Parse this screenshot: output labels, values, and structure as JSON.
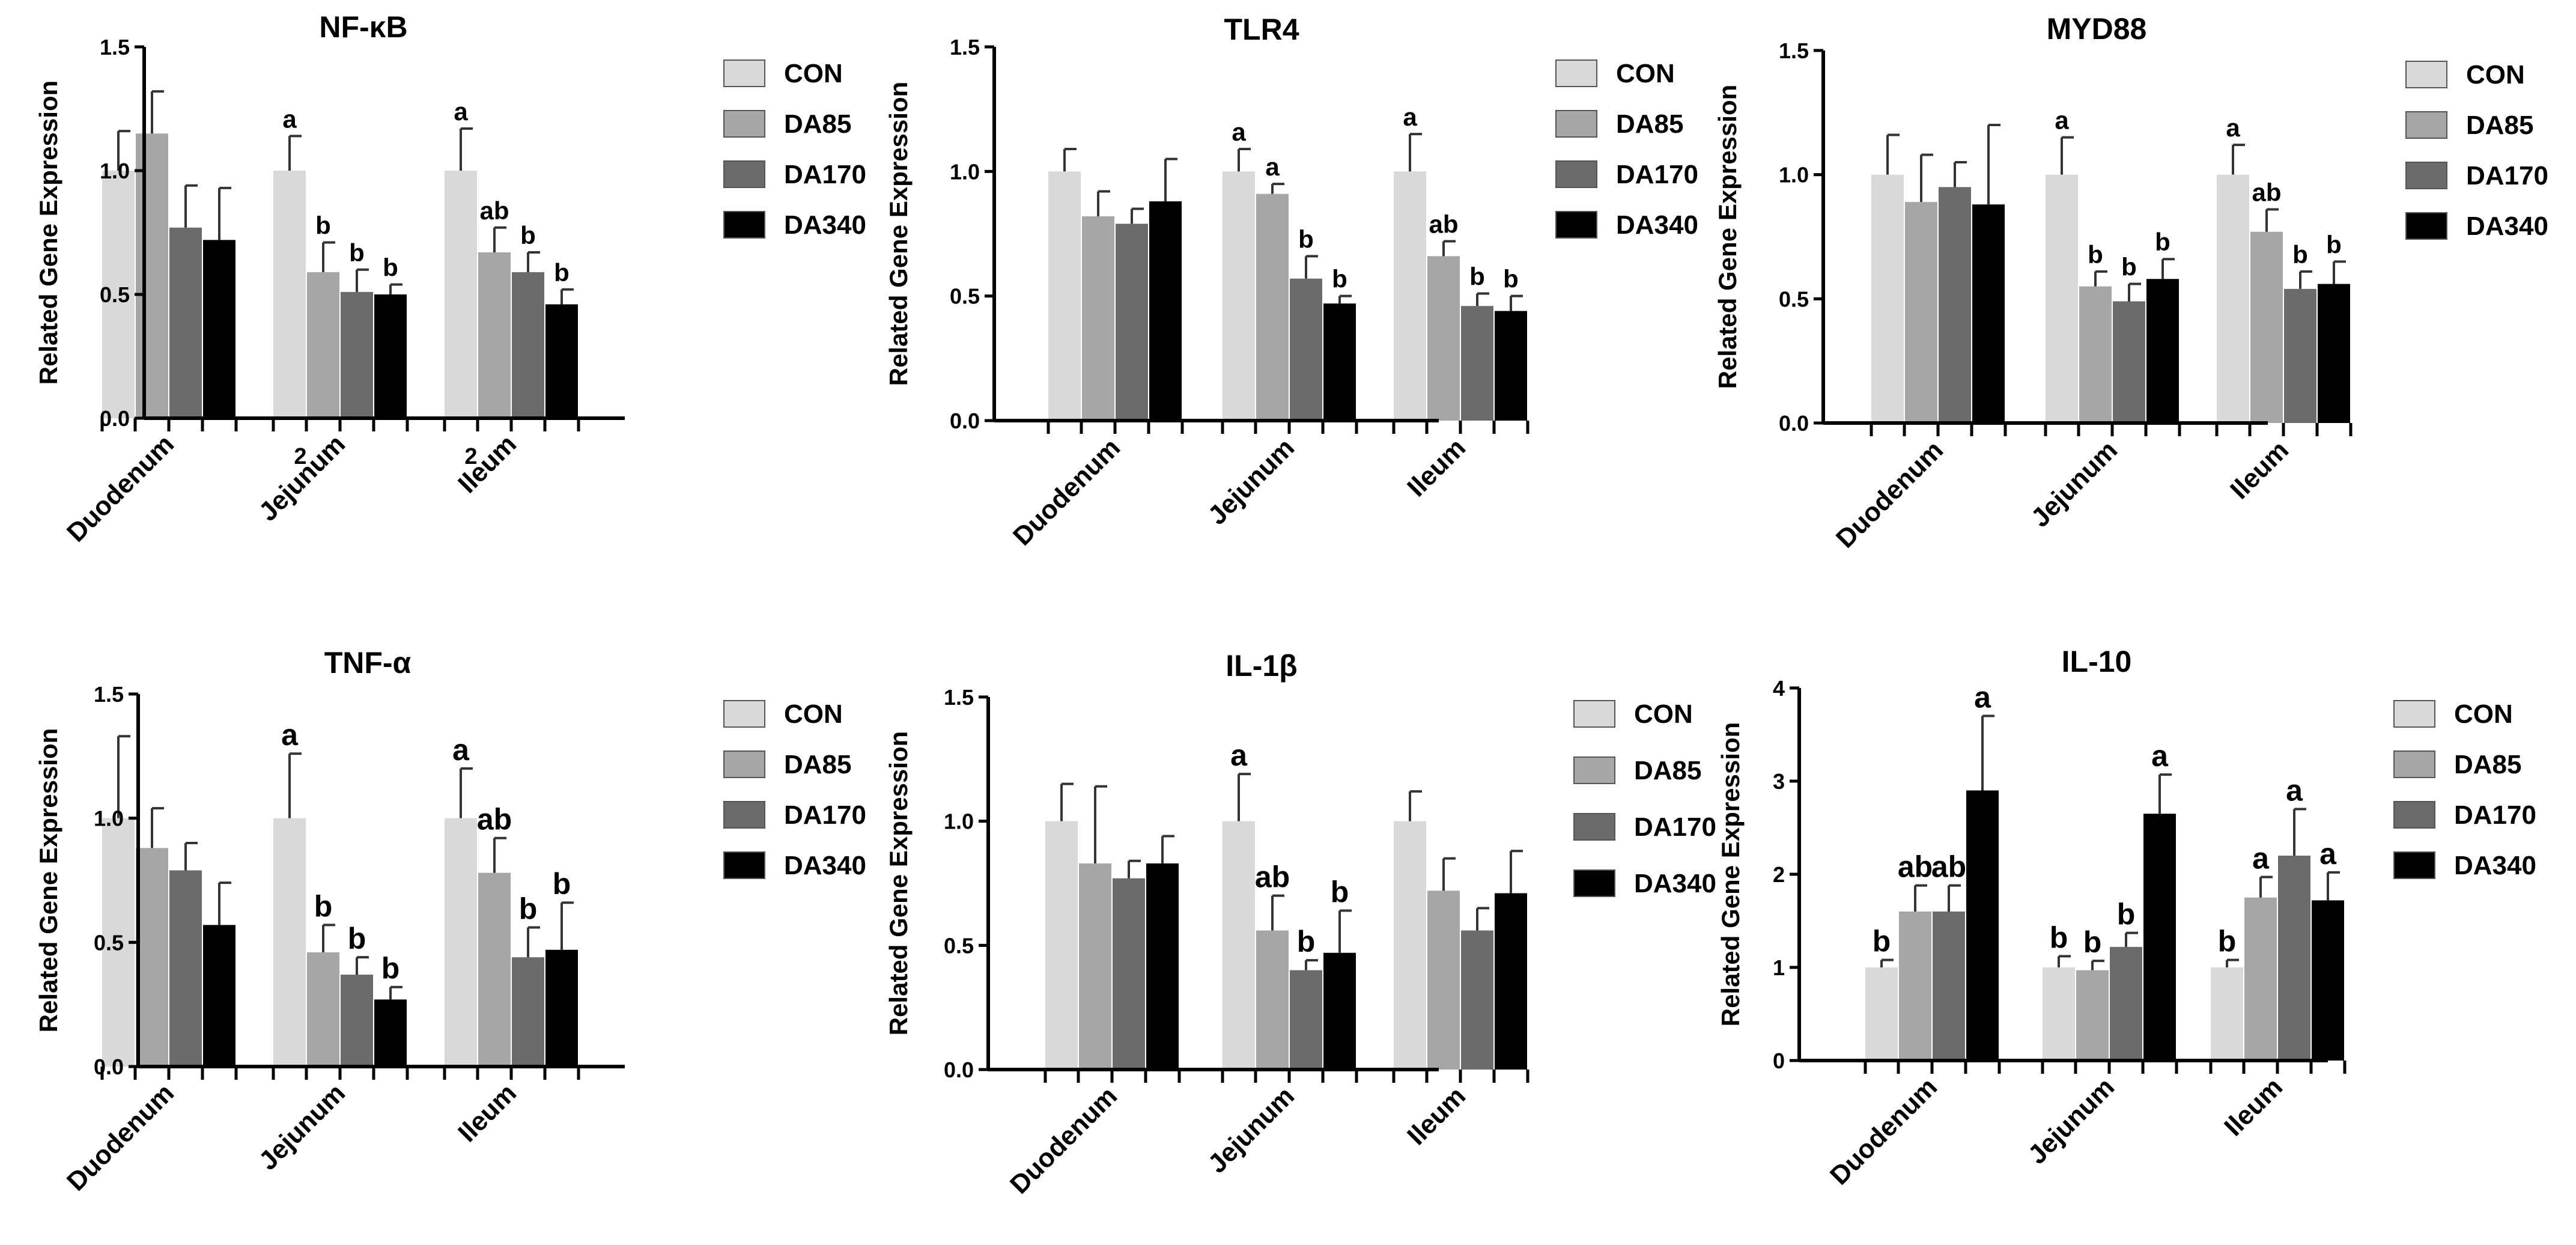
{
  "figure": {
    "ylabel": "Related Gene Expression",
    "groups": [
      "Duodenum",
      "Jejunum",
      "Ileum"
    ],
    "legend_labels": [
      "CON",
      "DA85",
      "DA170",
      "DA340"
    ],
    "colors": {
      "CON": "#d9d9d9",
      "DA85": "#a6a6a6",
      "DA170": "#6b6b6b",
      "DA340": "#000000"
    },
    "stray_labels": [
      "2",
      "2"
    ]
  },
  "chart_data": [
    {
      "type": "bar",
      "title": "NF-κB",
      "ylabel": "Related Gene Expression",
      "ylim": [
        0,
        1.5
      ],
      "yticks": [
        "0.0",
        "0.5",
        "1.0",
        "1.5"
      ],
      "categories": [
        "Duodenum",
        "Jejunum",
        "Ileum"
      ],
      "legend": "right",
      "series": [
        {
          "name": "CON",
          "values": [
            1.0,
            1.0,
            1.0
          ],
          "errors": [
            0.16,
            0.14,
            0.17
          ]
        },
        {
          "name": "DA85",
          "values": [
            1.15,
            0.59,
            0.67
          ],
          "errors": [
            0.17,
            0.12,
            0.1
          ]
        },
        {
          "name": "DA170",
          "values": [
            0.77,
            0.51,
            0.59
          ],
          "errors": [
            0.17,
            0.09,
            0.08
          ]
        },
        {
          "name": "DA340",
          "values": [
            0.72,
            0.5,
            0.46
          ],
          "errors": [
            0.21,
            0.04,
            0.06
          ]
        }
      ],
      "significance": [
        [
          "",
          "",
          "",
          ""
        ],
        [
          "a",
          "b",
          "b",
          "b"
        ],
        [
          "a",
          "ab",
          "b",
          "b"
        ]
      ]
    },
    {
      "type": "bar",
      "title": "TLR4",
      "ylabel": "Related Gene Expression",
      "ylim": [
        0,
        1.5
      ],
      "yticks": [
        "0.0",
        "0.5",
        "1.0",
        "1.5"
      ],
      "categories": [
        "Duodenum",
        "Jejunum",
        "Ileum"
      ],
      "legend": "right",
      "series": [
        {
          "name": "CON",
          "values": [
            1.0,
            1.0,
            1.0
          ],
          "errors": [
            0.09,
            0.09,
            0.15
          ]
        },
        {
          "name": "DA85",
          "values": [
            0.82,
            0.91,
            0.66
          ],
          "errors": [
            0.1,
            0.04,
            0.06
          ]
        },
        {
          "name": "DA170",
          "values": [
            0.79,
            0.57,
            0.46
          ],
          "errors": [
            0.06,
            0.09,
            0.05
          ]
        },
        {
          "name": "DA340",
          "values": [
            0.88,
            0.47,
            0.44
          ],
          "errors": [
            0.17,
            0.03,
            0.06
          ]
        }
      ],
      "significance": [
        [
          "",
          "",
          "",
          ""
        ],
        [
          "a",
          "a",
          "b",
          "b"
        ],
        [
          "a",
          "ab",
          "b",
          "b"
        ]
      ]
    },
    {
      "type": "bar",
      "title": "MYD88",
      "ylabel": "Related Gene Expression",
      "ylim": [
        0,
        1.5
      ],
      "yticks": [
        "0.0",
        "0.5",
        "1.0",
        "1.5"
      ],
      "categories": [
        "Duodenum",
        "Jejunum",
        "Ileum"
      ],
      "legend": "right",
      "series": [
        {
          "name": "CON",
          "values": [
            1.0,
            1.0,
            1.0
          ],
          "errors": [
            0.16,
            0.15,
            0.12
          ]
        },
        {
          "name": "DA85",
          "values": [
            0.89,
            0.55,
            0.77
          ],
          "errors": [
            0.19,
            0.06,
            0.09
          ]
        },
        {
          "name": "DA170",
          "values": [
            0.95,
            0.49,
            0.54
          ],
          "errors": [
            0.1,
            0.07,
            0.07
          ]
        },
        {
          "name": "DA340",
          "values": [
            0.88,
            0.58,
            0.56
          ],
          "errors": [
            0.32,
            0.08,
            0.09
          ]
        }
      ],
      "significance": [
        [
          "",
          "",
          "",
          ""
        ],
        [
          "a",
          "b",
          "b",
          "b"
        ],
        [
          "a",
          "ab",
          "b",
          "b"
        ]
      ]
    },
    {
      "type": "bar",
      "title": "TNF-α",
      "ylabel": "Related Gene Expression",
      "ylim": [
        0,
        1.5
      ],
      "yticks": [
        "0.0",
        "0.5",
        "1.0",
        "1.5"
      ],
      "categories": [
        "Duodenum",
        "Jejunum",
        "Ileum"
      ],
      "legend": "right",
      "series": [
        {
          "name": "CON",
          "values": [
            1.0,
            1.0,
            1.0
          ],
          "errors": [
            0.33,
            0.26,
            0.2
          ]
        },
        {
          "name": "DA85",
          "values": [
            0.88,
            0.46,
            0.78
          ],
          "errors": [
            0.16,
            0.11,
            0.14
          ]
        },
        {
          "name": "DA170",
          "values": [
            0.79,
            0.37,
            0.44
          ],
          "errors": [
            0.11,
            0.07,
            0.12
          ]
        },
        {
          "name": "DA340",
          "values": [
            0.57,
            0.27,
            0.47
          ],
          "errors": [
            0.17,
            0.05,
            0.19
          ]
        }
      ],
      "significance": [
        [
          "",
          "",
          "",
          ""
        ],
        [
          "a",
          "b",
          "b",
          "b"
        ],
        [
          "a",
          "ab",
          "b",
          "b"
        ]
      ]
    },
    {
      "type": "bar",
      "title": "IL-1β",
      "ylabel": "Related Gene Expression",
      "ylim": [
        0,
        1.5
      ],
      "yticks": [
        "0.0",
        "0.5",
        "1.0",
        "1.5"
      ],
      "categories": [
        "Duodenum",
        "Jejunum",
        "Ileum"
      ],
      "legend": "right",
      "series": [
        {
          "name": "CON",
          "values": [
            1.0,
            1.0,
            1.0
          ],
          "errors": [
            0.15,
            0.19,
            0.12
          ]
        },
        {
          "name": "DA85",
          "values": [
            0.83,
            0.56,
            0.72
          ],
          "errors": [
            0.31,
            0.14,
            0.13
          ]
        },
        {
          "name": "DA170",
          "values": [
            0.77,
            0.4,
            0.56
          ],
          "errors": [
            0.07,
            0.04,
            0.09
          ]
        },
        {
          "name": "DA340",
          "values": [
            0.83,
            0.47,
            0.71
          ],
          "errors": [
            0.11,
            0.17,
            0.17
          ]
        }
      ],
      "significance": [
        [
          "",
          "",
          "",
          ""
        ],
        [
          "a",
          "ab",
          "b",
          "b"
        ],
        [
          "",
          "",
          "",
          ""
        ]
      ]
    },
    {
      "type": "bar",
      "title": "IL-10",
      "ylabel": "Related Gene Expression",
      "ylim": [
        0,
        4
      ],
      "yticks": [
        "0",
        "1",
        "2",
        "3",
        "4"
      ],
      "categories": [
        "Duodenum",
        "Jejunum",
        "Ileum"
      ],
      "legend": "right",
      "series": [
        {
          "name": "CON",
          "values": [
            1.0,
            1.0,
            1.0
          ],
          "errors": [
            0.08,
            0.12,
            0.08
          ]
        },
        {
          "name": "DA85",
          "values": [
            1.6,
            0.97,
            1.75
          ],
          "errors": [
            0.28,
            0.1,
            0.22
          ]
        },
        {
          "name": "DA170",
          "values": [
            1.6,
            1.22,
            2.2
          ],
          "errors": [
            0.28,
            0.15,
            0.5
          ]
        },
        {
          "name": "DA340",
          "values": [
            2.9,
            2.65,
            1.72
          ],
          "errors": [
            0.8,
            0.42,
            0.3
          ]
        }
      ],
      "significance": [
        [
          "b",
          "ab",
          "ab",
          "a"
        ],
        [
          "b",
          "b",
          "b",
          "a"
        ],
        [
          "b",
          "a",
          "a",
          "a"
        ]
      ]
    }
  ]
}
